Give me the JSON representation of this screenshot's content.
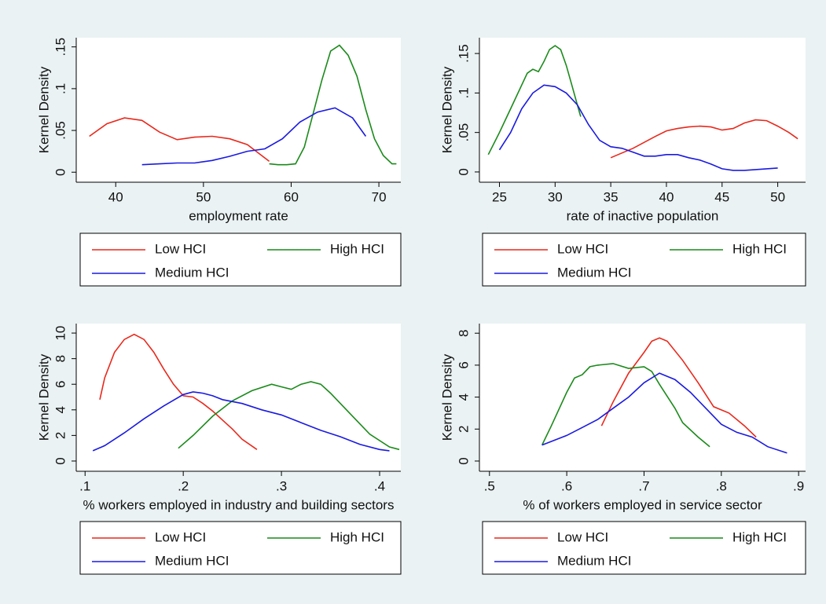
{
  "chart_data": [
    {
      "type": "line",
      "x_label": "employment rate",
      "y_label": "Kernel Density",
      "xlim": [
        35.5,
        72.5
      ],
      "ylim": [
        -0.012,
        0.161
      ],
      "xticks": [
        40,
        50,
        60,
        70
      ],
      "yticks": [
        0,
        {
          "value": 0.05,
          "label": ".05"
        },
        {
          "value": 0.1,
          "label": ".1"
        },
        {
          "value": 0.15,
          "label": ".15"
        }
      ],
      "series": [
        {
          "name": "Low HCI",
          "color": "#e8291c",
          "x": [
            37,
            39,
            41,
            43,
            45,
            47,
            49,
            51,
            53,
            55,
            57.5
          ],
          "values": [
            0.043,
            0.058,
            0.065,
            0.062,
            0.048,
            0.039,
            0.042,
            0.043,
            0.04,
            0.033,
            0.013
          ]
        },
        {
          "name": "High HCI",
          "color": "#1a8a1a",
          "x": [
            57.5,
            58.5,
            59.5,
            60.5,
            61.5,
            62.5,
            63.5,
            64.5,
            65.5,
            66.5,
            67.5,
            68.5,
            69.5,
            70.5,
            71.5,
            72
          ],
          "values": [
            0.01,
            0.009,
            0.009,
            0.01,
            0.03,
            0.07,
            0.11,
            0.145,
            0.152,
            0.14,
            0.115,
            0.075,
            0.04,
            0.02,
            0.01,
            0.01
          ]
        },
        {
          "name": "Medium HCI",
          "color": "#1a1ae0",
          "x": [
            43,
            45,
            47,
            49,
            51,
            53,
            55,
            57,
            59,
            61,
            63,
            65,
            67,
            68.5
          ],
          "values": [
            0.009,
            0.01,
            0.011,
            0.011,
            0.014,
            0.019,
            0.025,
            0.028,
            0.04,
            0.06,
            0.072,
            0.077,
            0.065,
            0.043
          ]
        }
      ]
    },
    {
      "type": "line",
      "x_label": "rate of inactive population",
      "y_label": "Kernel Density",
      "xlim": [
        23.2,
        52.5
      ],
      "ylim": [
        -0.013,
        0.17
      ],
      "xticks": [
        25,
        30,
        35,
        40,
        45,
        50
      ],
      "yticks": [
        0,
        {
          "value": 0.05,
          "label": ".05"
        },
        {
          "value": 0.1,
          "label": ".1"
        },
        {
          "value": 0.15,
          "label": ".15"
        }
      ],
      "series": [
        {
          "name": "Low HCI",
          "color": "#e8291c",
          "x": [
            35,
            37,
            39,
            40,
            41,
            42,
            43,
            44,
            45,
            46,
            47,
            48,
            49,
            50,
            51,
            51.8
          ],
          "values": [
            0.018,
            0.03,
            0.045,
            0.052,
            0.055,
            0.057,
            0.058,
            0.057,
            0.053,
            0.055,
            0.062,
            0.066,
            0.065,
            0.058,
            0.05,
            0.042
          ]
        },
        {
          "name": "High HCI",
          "color": "#1a8a1a",
          "x": [
            24,
            25,
            26,
            27,
            27.5,
            28,
            28.5,
            29,
            29.5,
            30,
            30.5,
            31,
            31.5,
            32,
            32.3
          ],
          "values": [
            0.022,
            0.05,
            0.08,
            0.11,
            0.125,
            0.13,
            0.127,
            0.14,
            0.155,
            0.16,
            0.155,
            0.135,
            0.11,
            0.085,
            0.07
          ]
        },
        {
          "name": "Medium HCI",
          "color": "#1a1ae0",
          "x": [
            25,
            26,
            27,
            28,
            29,
            30,
            31,
            32,
            33,
            34,
            35,
            36,
            37,
            38,
            39,
            40,
            41,
            42,
            43,
            44,
            45,
            46,
            47,
            48,
            50
          ],
          "values": [
            0.028,
            0.05,
            0.08,
            0.1,
            0.11,
            0.108,
            0.1,
            0.085,
            0.06,
            0.04,
            0.032,
            0.03,
            0.025,
            0.02,
            0.02,
            0.022,
            0.022,
            0.018,
            0.015,
            0.01,
            0.004,
            0.002,
            0.002,
            0.003,
            0.005
          ]
        }
      ]
    },
    {
      "type": "line",
      "x_label": "% workers employed in industry and building sectors",
      "y_label": "Kernel Density",
      "xlim": [
        0.091,
        0.4216
      ],
      "ylim": [
        -0.8,
        10.74
      ],
      "xticks": [
        {
          "value": 0.1,
          "label": ".1"
        },
        {
          "value": 0.2,
          "label": ".2"
        },
        {
          "value": 0.3,
          "label": ".3"
        },
        {
          "value": 0.4,
          "label": ".4"
        }
      ],
      "yticks": [
        0,
        2,
        4,
        6,
        8,
        10
      ],
      "series": [
        {
          "name": "Low HCI",
          "color": "#e8291c",
          "x": [
            0.115,
            0.12,
            0.13,
            0.14,
            0.15,
            0.16,
            0.17,
            0.18,
            0.19,
            0.2,
            0.21,
            0.22,
            0.23,
            0.24,
            0.25,
            0.26,
            0.275
          ],
          "values": [
            4.8,
            6.5,
            8.5,
            9.5,
            9.9,
            9.5,
            8.5,
            7.2,
            6,
            5.1,
            5,
            4.5,
            3.9,
            3.2,
            2.5,
            1.7,
            0.9
          ]
        },
        {
          "name": "High HCI",
          "color": "#1a8a1a",
          "x": [
            0.195,
            0.21,
            0.23,
            0.25,
            0.27,
            0.29,
            0.3,
            0.31,
            0.32,
            0.33,
            0.34,
            0.35,
            0.37,
            0.39,
            0.41,
            0.42
          ],
          "values": [
            1,
            2,
            3.5,
            4.7,
            5.5,
            6,
            5.8,
            5.6,
            6,
            6.2,
            6,
            5.3,
            3.7,
            2.1,
            1.1,
            0.9
          ]
        },
        {
          "name": "Medium HCI",
          "color": "#1a1ae0",
          "x": [
            0.108,
            0.12,
            0.14,
            0.16,
            0.18,
            0.2,
            0.21,
            0.22,
            0.23,
            0.24,
            0.26,
            0.28,
            0.3,
            0.32,
            0.34,
            0.36,
            0.38,
            0.4,
            0.41
          ],
          "values": [
            0.8,
            1.2,
            2.2,
            3.3,
            4.3,
            5.2,
            5.4,
            5.3,
            5.1,
            4.8,
            4.5,
            4,
            3.6,
            3,
            2.4,
            1.9,
            1.3,
            0.9,
            0.8
          ]
        }
      ]
    },
    {
      "type": "line",
      "x_label": "% of workers employed in service sector",
      "y_label": "Kernel Density",
      "xlim": [
        0.487,
        0.909
      ],
      "ylim": [
        -0.64,
        8.6
      ],
      "xticks": [
        {
          "value": 0.5,
          "label": ".5"
        },
        {
          "value": 0.6,
          "label": ".6"
        },
        {
          "value": 0.7,
          "label": ".7"
        },
        {
          "value": 0.8,
          "label": ".8"
        },
        {
          "value": 0.9,
          "label": ".9"
        }
      ],
      "yticks": [
        0,
        2,
        4,
        6,
        8
      ],
      "series": [
        {
          "name": "Low HCI",
          "color": "#e8291c",
          "x": [
            0.645,
            0.66,
            0.68,
            0.7,
            0.71,
            0.72,
            0.73,
            0.75,
            0.77,
            0.79,
            0.81,
            0.83,
            0.845
          ],
          "values": [
            2.2,
            3.7,
            5.5,
            6.8,
            7.5,
            7.7,
            7.5,
            6.3,
            4.9,
            3.4,
            3,
            2.2,
            1.5
          ]
        },
        {
          "name": "High HCI",
          "color": "#1a8a1a",
          "x": [
            0.568,
            0.58,
            0.6,
            0.61,
            0.62,
            0.63,
            0.64,
            0.66,
            0.68,
            0.7,
            0.71,
            0.72,
            0.74,
            0.75,
            0.77,
            0.785
          ],
          "values": [
            1,
            2.2,
            4.3,
            5.2,
            5.4,
            5.9,
            6,
            6.1,
            5.8,
            5.9,
            5.6,
            4.8,
            3.3,
            2.4,
            1.5,
            0.9
          ]
        },
        {
          "name": "Medium HCI",
          "color": "#1a1ae0",
          "x": [
            0.568,
            0.6,
            0.62,
            0.64,
            0.66,
            0.68,
            0.7,
            0.72,
            0.74,
            0.76,
            0.78,
            0.8,
            0.82,
            0.84,
            0.86,
            0.885
          ],
          "values": [
            1,
            1.6,
            2.1,
            2.6,
            3.3,
            4,
            4.9,
            5.5,
            5.1,
            4.3,
            3.3,
            2.3,
            1.8,
            1.5,
            0.9,
            0.5
          ]
        }
      ]
    }
  ]
}
